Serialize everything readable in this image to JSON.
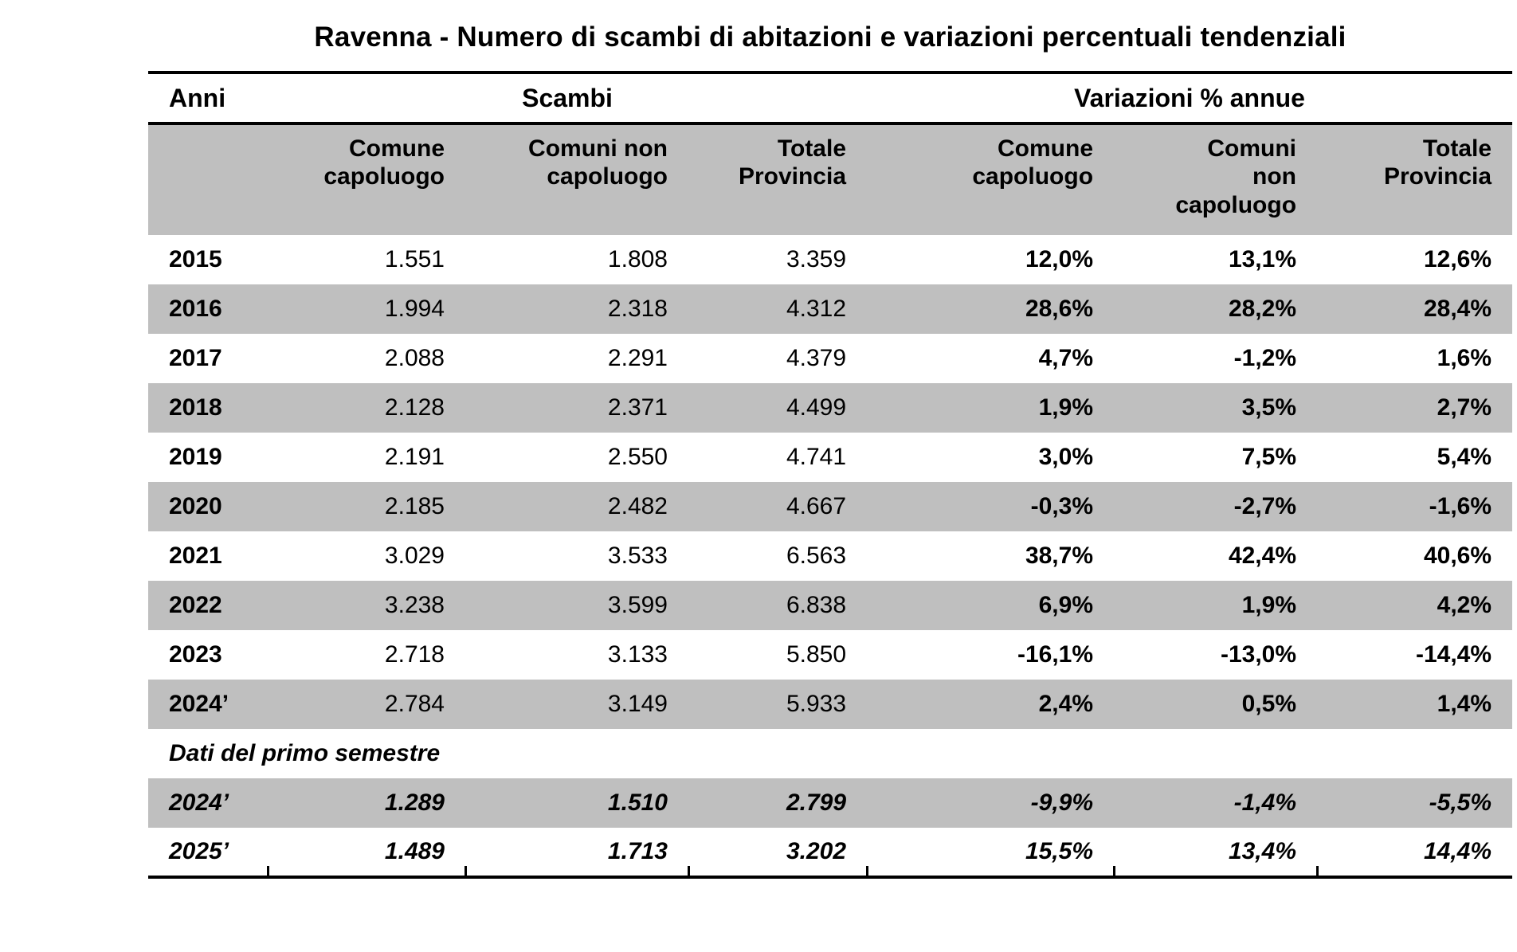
{
  "colors": {
    "row_shade": "#bfbfbf",
    "border": "#000000",
    "text": "#000000",
    "background": "#ffffff"
  },
  "chart_data": {
    "type": "table",
    "title": "Ravenna - Numero di scambi di abitazioni e variazioni percentuali tendenziali",
    "group_headers": {
      "anni": "Anni",
      "scambi": "Scambi",
      "variazioni": "Variazioni % annue"
    },
    "sub_headers": [
      "Comune\ncapoluogo",
      "Comuni non\ncapoluogo",
      "Totale\nProvincia",
      "Comune\ncapoluogo",
      "Comuni\nnon\ncapoluogo",
      "Totale\nProvincia"
    ],
    "rows": [
      {
        "year": "2015",
        "scambi": [
          "1.551",
          "1.808",
          "3.359"
        ],
        "variazioni": [
          "12,0%",
          "13,1%",
          "12,6%"
        ],
        "shaded": false
      },
      {
        "year": "2016",
        "scambi": [
          "1.994",
          "2.318",
          "4.312"
        ],
        "variazioni": [
          "28,6%",
          "28,2%",
          "28,4%"
        ],
        "shaded": true
      },
      {
        "year": "2017",
        "scambi": [
          "2.088",
          "2.291",
          "4.379"
        ],
        "variazioni": [
          "4,7%",
          "-1,2%",
          "1,6%"
        ],
        "shaded": false
      },
      {
        "year": "2018",
        "scambi": [
          "2.128",
          "2.371",
          "4.499"
        ],
        "variazioni": [
          "1,9%",
          "3,5%",
          "2,7%"
        ],
        "shaded": true
      },
      {
        "year": "2019",
        "scambi": [
          "2.191",
          "2.550",
          "4.741"
        ],
        "variazioni": [
          "3,0%",
          "7,5%",
          "5,4%"
        ],
        "shaded": false
      },
      {
        "year": "2020",
        "scambi": [
          "2.185",
          "2.482",
          "4.667"
        ],
        "variazioni": [
          "-0,3%",
          "-2,7%",
          "-1,6%"
        ],
        "shaded": true
      },
      {
        "year": "2021",
        "scambi": [
          "3.029",
          "3.533",
          "6.563"
        ],
        "variazioni": [
          "38,7%",
          "42,4%",
          "40,6%"
        ],
        "shaded": false
      },
      {
        "year": "2022",
        "scambi": [
          "3.238",
          "3.599",
          "6.838"
        ],
        "variazioni": [
          "6,9%",
          "1,9%",
          "4,2%"
        ],
        "shaded": true
      },
      {
        "year": "2023",
        "scambi": [
          "2.718",
          "3.133",
          "5.850"
        ],
        "variazioni": [
          "-16,1%",
          "-13,0%",
          "-14,4%"
        ],
        "shaded": false
      },
      {
        "year": "2024’",
        "scambi": [
          "2.784",
          "3.149",
          "5.933"
        ],
        "variazioni": [
          "2,4%",
          "0,5%",
          "1,4%"
        ],
        "shaded": true
      }
    ],
    "section_label": "Dati del primo semestre",
    "semester_rows": [
      {
        "year": "2024’",
        "scambi": [
          "1.289",
          "1.510",
          "2.799"
        ],
        "variazioni": [
          "-9,9%",
          "-1,4%",
          "-5,5%"
        ],
        "shaded": true
      },
      {
        "year": "2025’",
        "scambi": [
          "1.489",
          "1.713",
          "3.202"
        ],
        "variazioni": [
          "15,5%",
          "13,4%",
          "14,4%"
        ],
        "shaded": false
      }
    ]
  }
}
